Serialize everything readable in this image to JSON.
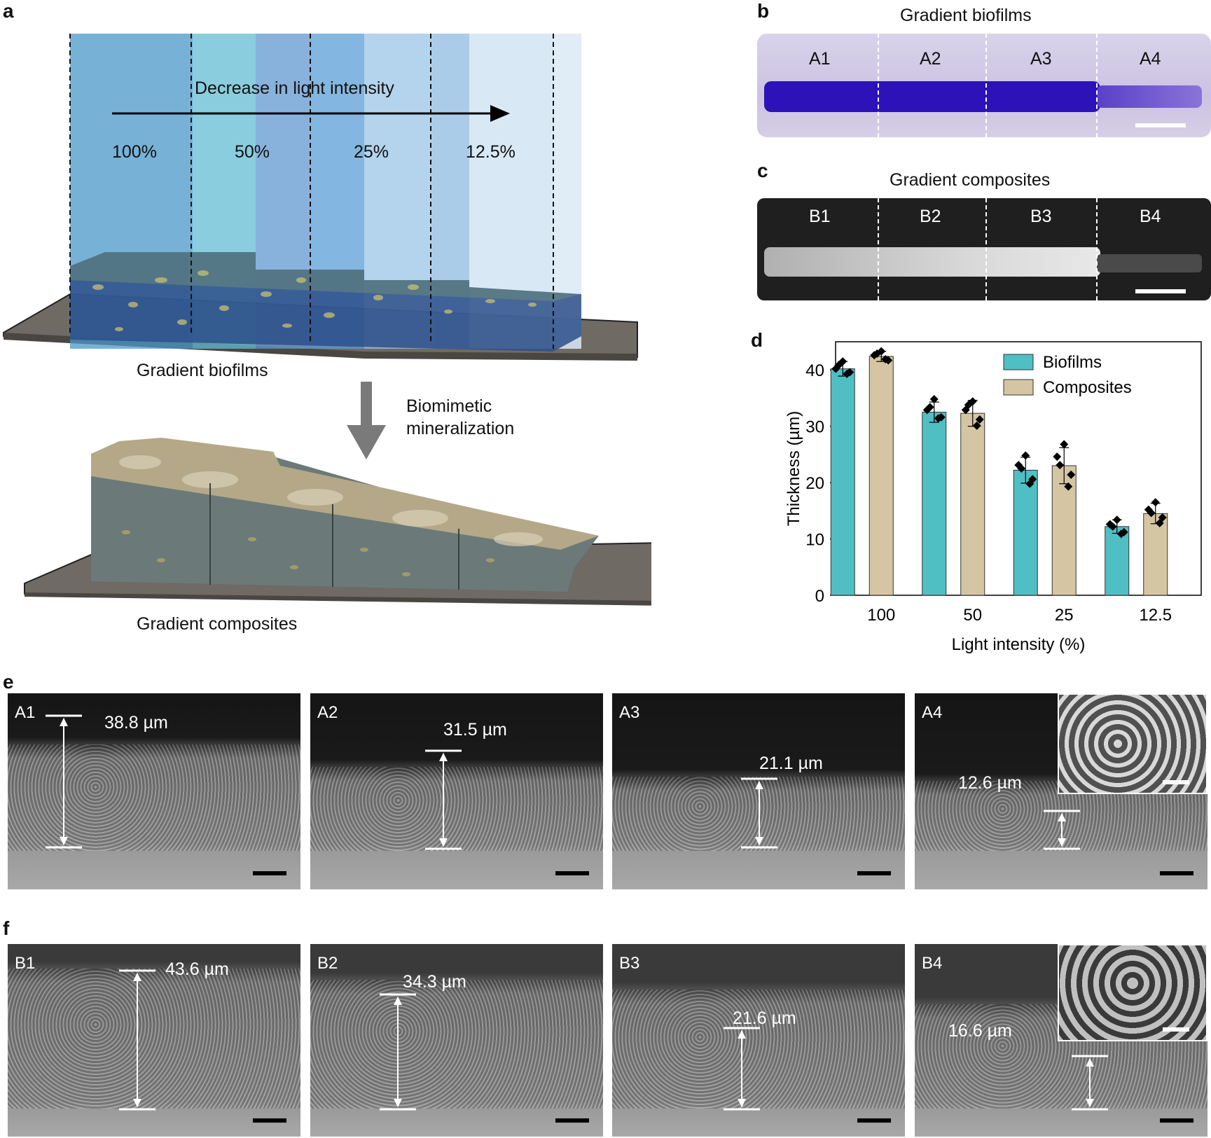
{
  "panel_a": {
    "label": "a",
    "arrow_text": "Decrease in light intensity",
    "intensities": [
      "100%",
      "50%",
      "25%",
      "12.5%"
    ],
    "top_caption": "Gradient biofilms",
    "process_line1": "Biomimetic",
    "process_line2": "mineralization",
    "bottom_caption": "Gradient composites"
  },
  "panel_b": {
    "label": "b",
    "title": "Gradient biofilms",
    "regions": [
      "A1",
      "A2",
      "A3",
      "A4"
    ]
  },
  "panel_c": {
    "label": "c",
    "title": "Gradient composites",
    "regions": [
      "B1",
      "B2",
      "B3",
      "B4"
    ]
  },
  "panel_d": {
    "label": "d"
  },
  "chart_data": {
    "type": "bar",
    "categories": [
      "100",
      "50",
      "25",
      "12.5"
    ],
    "xlabel": "Light intensity (%)",
    "ylabel": "Thickness (µm)",
    "ylim": [
      0,
      45
    ],
    "yticks": [
      0,
      10,
      20,
      30,
      40
    ],
    "legend_position": "top-right",
    "series": [
      {
        "name": "Biofilms",
        "color": "#4fbfc4",
        "values": [
          40.2,
          32.5,
          22.2,
          12.2
        ],
        "errors": [
          1.3,
          1.8,
          2.3,
          1.2
        ],
        "points": [
          [
            41.5,
            40.2,
            39.6,
            40.8,
            39.3
          ],
          [
            34.8,
            32.9,
            31.6,
            33.4,
            31.4
          ],
          [
            24.8,
            23.1,
            20.6,
            22.5,
            19.8
          ],
          [
            13.4,
            12.6,
            11.2,
            12.2,
            10.9
          ]
        ]
      },
      {
        "name": "Composites",
        "color": "#d5c6a3",
        "values": [
          42.4,
          32.3,
          23.0,
          14.5
        ],
        "errors": [
          0.9,
          2.3,
          3.2,
          1.8
        ],
        "points": [
          [
            43.3,
            42.6,
            41.7,
            42.9,
            41.9
          ],
          [
            34.4,
            32.9,
            31.2,
            33.8,
            30.1
          ],
          [
            26.8,
            24.6,
            21.4,
            23.1,
            19.3
          ],
          [
            16.5,
            15.2,
            13.8,
            14.6,
            12.8
          ]
        ]
      }
    ]
  },
  "panel_e": {
    "label": "e",
    "images": [
      {
        "label": "A1",
        "measure": "38.8 µm"
      },
      {
        "label": "A2",
        "measure": "31.5 µm"
      },
      {
        "label": "A3",
        "measure": "21.1 µm"
      },
      {
        "label": "A4",
        "measure": "12.6 µm"
      }
    ]
  },
  "panel_f": {
    "label": "f",
    "images": [
      {
        "label": "B1",
        "measure": "43.6 µm"
      },
      {
        "label": "B2",
        "measure": "34.3 µm"
      },
      {
        "label": "B3",
        "measure": "21.6 µm"
      },
      {
        "label": "B4",
        "measure": "16.6 µm"
      }
    ]
  }
}
